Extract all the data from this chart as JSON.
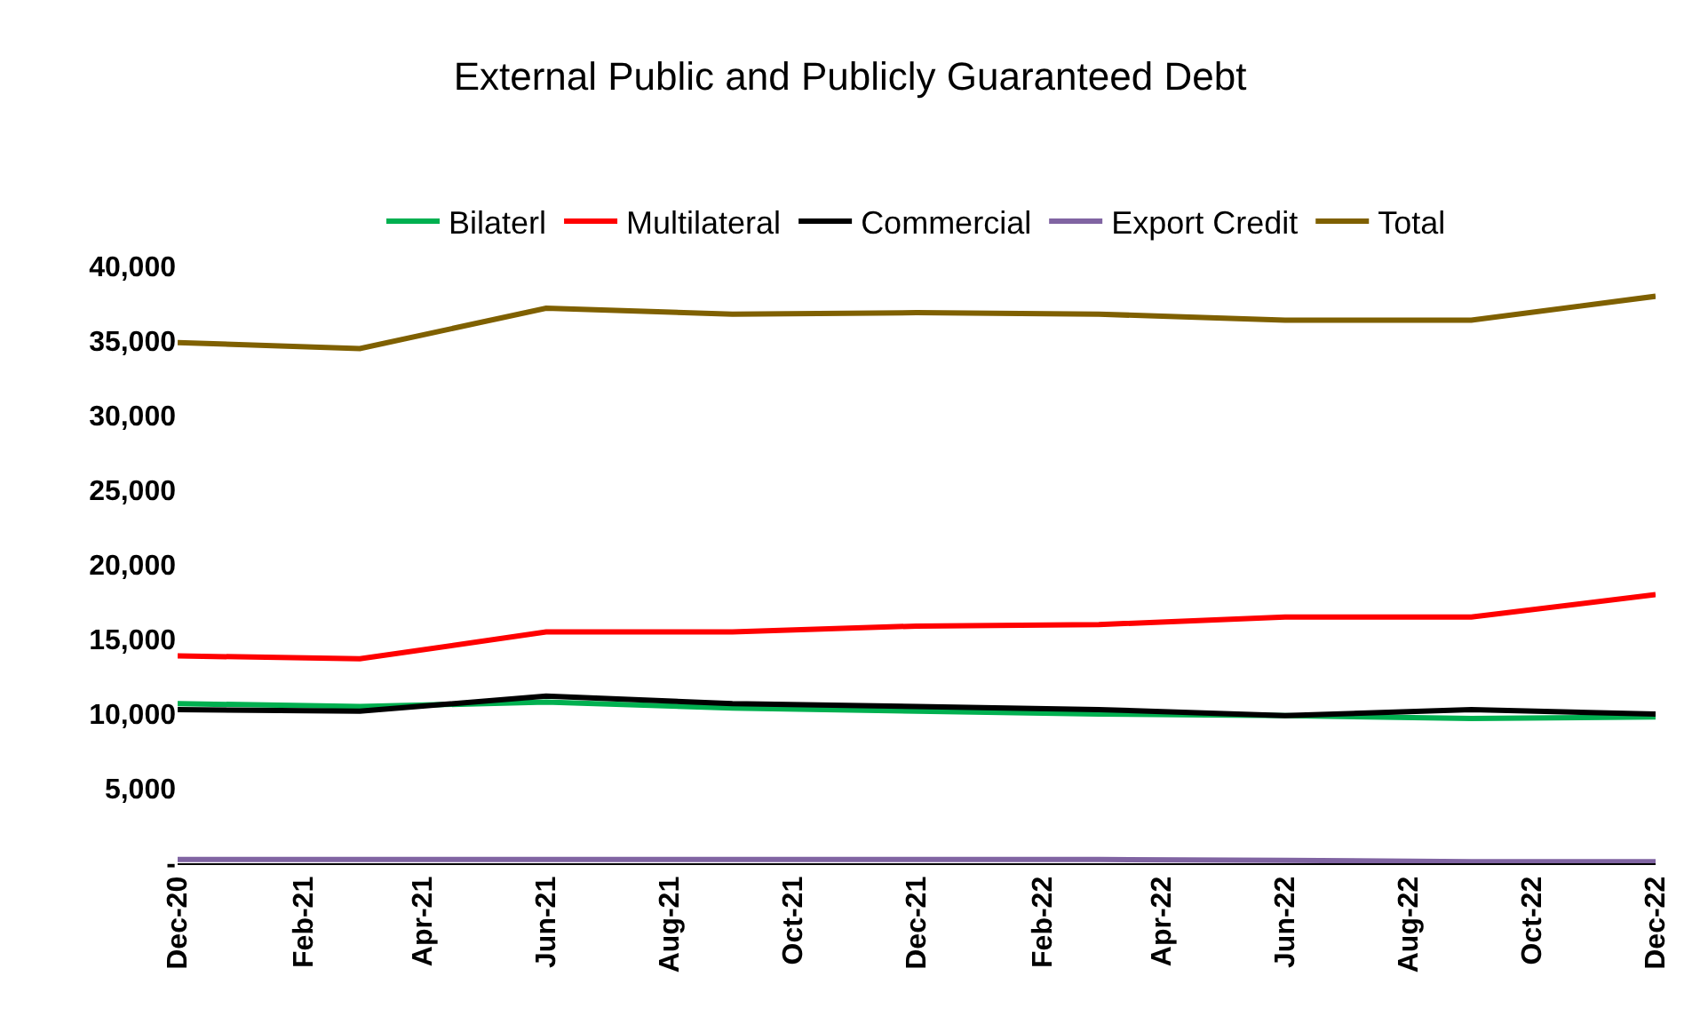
{
  "chart_data": {
    "type": "line",
    "title": "External Public and Publicly Guaranteed Debt",
    "x": [
      "2020-12",
      "2021-03",
      "2021-06",
      "2021-09",
      "2021-12",
      "2022-03",
      "2022-06",
      "2022-09",
      "2022-12"
    ],
    "series": [
      {
        "name": "Bilaterl",
        "color": "#00b050",
        "values": [
          10700,
          10500,
          10800,
          10400,
          10200,
          10000,
          9900,
          9700,
          9800
        ]
      },
      {
        "name": "Multilateral",
        "color": "#ff0000",
        "values": [
          13900,
          13700,
          15500,
          15500,
          15900,
          16000,
          16500,
          16500,
          18000
        ]
      },
      {
        "name": "Commercial",
        "color": "#000000",
        "values": [
          10300,
          10200,
          11200,
          10700,
          10500,
          10300,
          9900,
          10300,
          10000
        ]
      },
      {
        "name": "Export Credit",
        "color": "#8064a2",
        "values": [
          250,
          250,
          250,
          250,
          250,
          250,
          200,
          100,
          100
        ]
      },
      {
        "name": "Total",
        "color": "#7f6000",
        "values": [
          34900,
          34500,
          37200,
          36800,
          36900,
          36800,
          36400,
          36400,
          38000
        ]
      }
    ],
    "xlim": [
      "2020-12",
      "2022-12"
    ],
    "xticks": [
      {
        "value": "2020-12",
        "label": "Dec-20"
      },
      {
        "value": "2021-02",
        "label": "Feb-21"
      },
      {
        "value": "2021-04",
        "label": "Apr-21"
      },
      {
        "value": "2021-06",
        "label": "Jun-21"
      },
      {
        "value": "2021-08",
        "label": "Aug-21"
      },
      {
        "value": "2021-10",
        "label": "Oct-21"
      },
      {
        "value": "2021-12",
        "label": "Dec-21"
      },
      {
        "value": "2022-02",
        "label": "Feb-22"
      },
      {
        "value": "2022-04",
        "label": "Apr-22"
      },
      {
        "value": "2022-06",
        "label": "Jun-22"
      },
      {
        "value": "2022-08",
        "label": "Aug-22"
      },
      {
        "value": "2022-10",
        "label": "Oct-22"
      },
      {
        "value": "2022-12",
        "label": "Dec-22"
      }
    ],
    "ylim": [
      0,
      40000
    ],
    "yticks": [
      {
        "value": 0,
        "label": "-"
      },
      {
        "value": 5000,
        "label": "5,000"
      },
      {
        "value": 10000,
        "label": "10,000"
      },
      {
        "value": 15000,
        "label": "15,000"
      },
      {
        "value": 20000,
        "label": "20,000"
      },
      {
        "value": 25000,
        "label": "25,000"
      },
      {
        "value": 30000,
        "label": "30,000"
      },
      {
        "value": 35000,
        "label": "35,000"
      },
      {
        "value": 40000,
        "label": "40,000"
      }
    ],
    "grid": false,
    "legend": "top",
    "marker": "none",
    "line_style": "solid"
  }
}
